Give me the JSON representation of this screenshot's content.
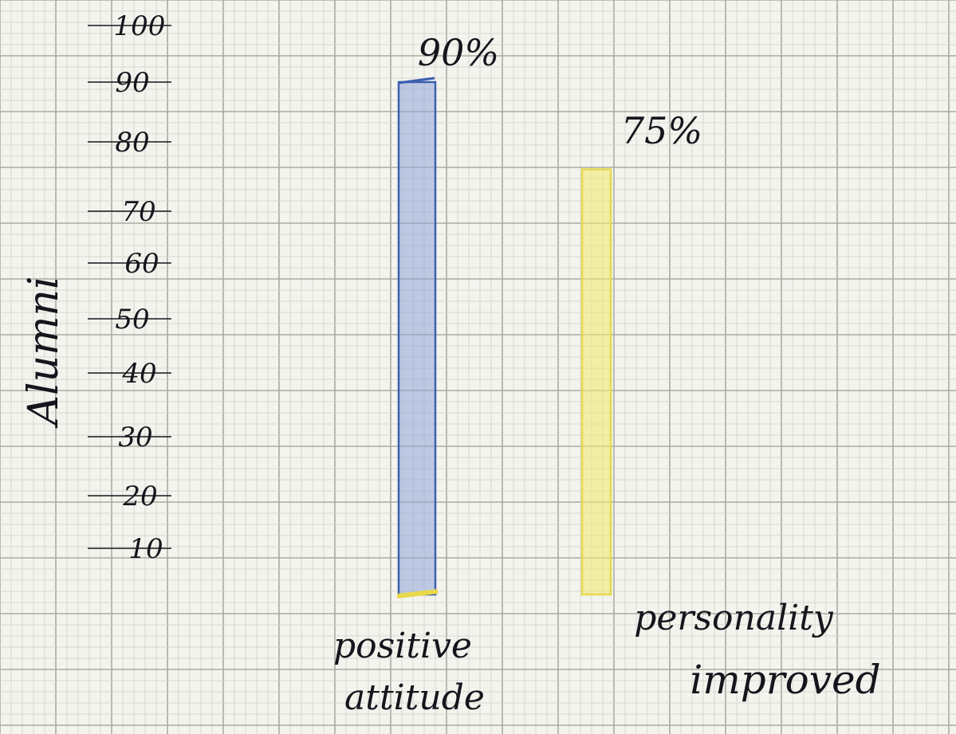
{
  "chart_data": {
    "type": "bar",
    "title": "",
    "xlabel": "",
    "ylabel": "Alumni",
    "ylim": [
      0,
      100
    ],
    "yticks": [
      10,
      20,
      30,
      40,
      50,
      60,
      70,
      80,
      90,
      100
    ],
    "categories": [
      {
        "line1": "positive",
        "line2": "attitude"
      },
      {
        "line1": "personality",
        "line2": "improved"
      }
    ],
    "values": [
      90,
      75
    ],
    "value_labels": [
      "90%",
      "75%"
    ],
    "grid": true,
    "colors": {
      "paper": "#f4f4ee",
      "grid_major": "#a9aba3",
      "grid_minor": "#cfd0c8",
      "bar_positive": "#8fa6d8",
      "bar_positive_edge": "#3c5fae",
      "bar_personality": "#f3ea6c",
      "ink": "#15151d"
    }
  }
}
